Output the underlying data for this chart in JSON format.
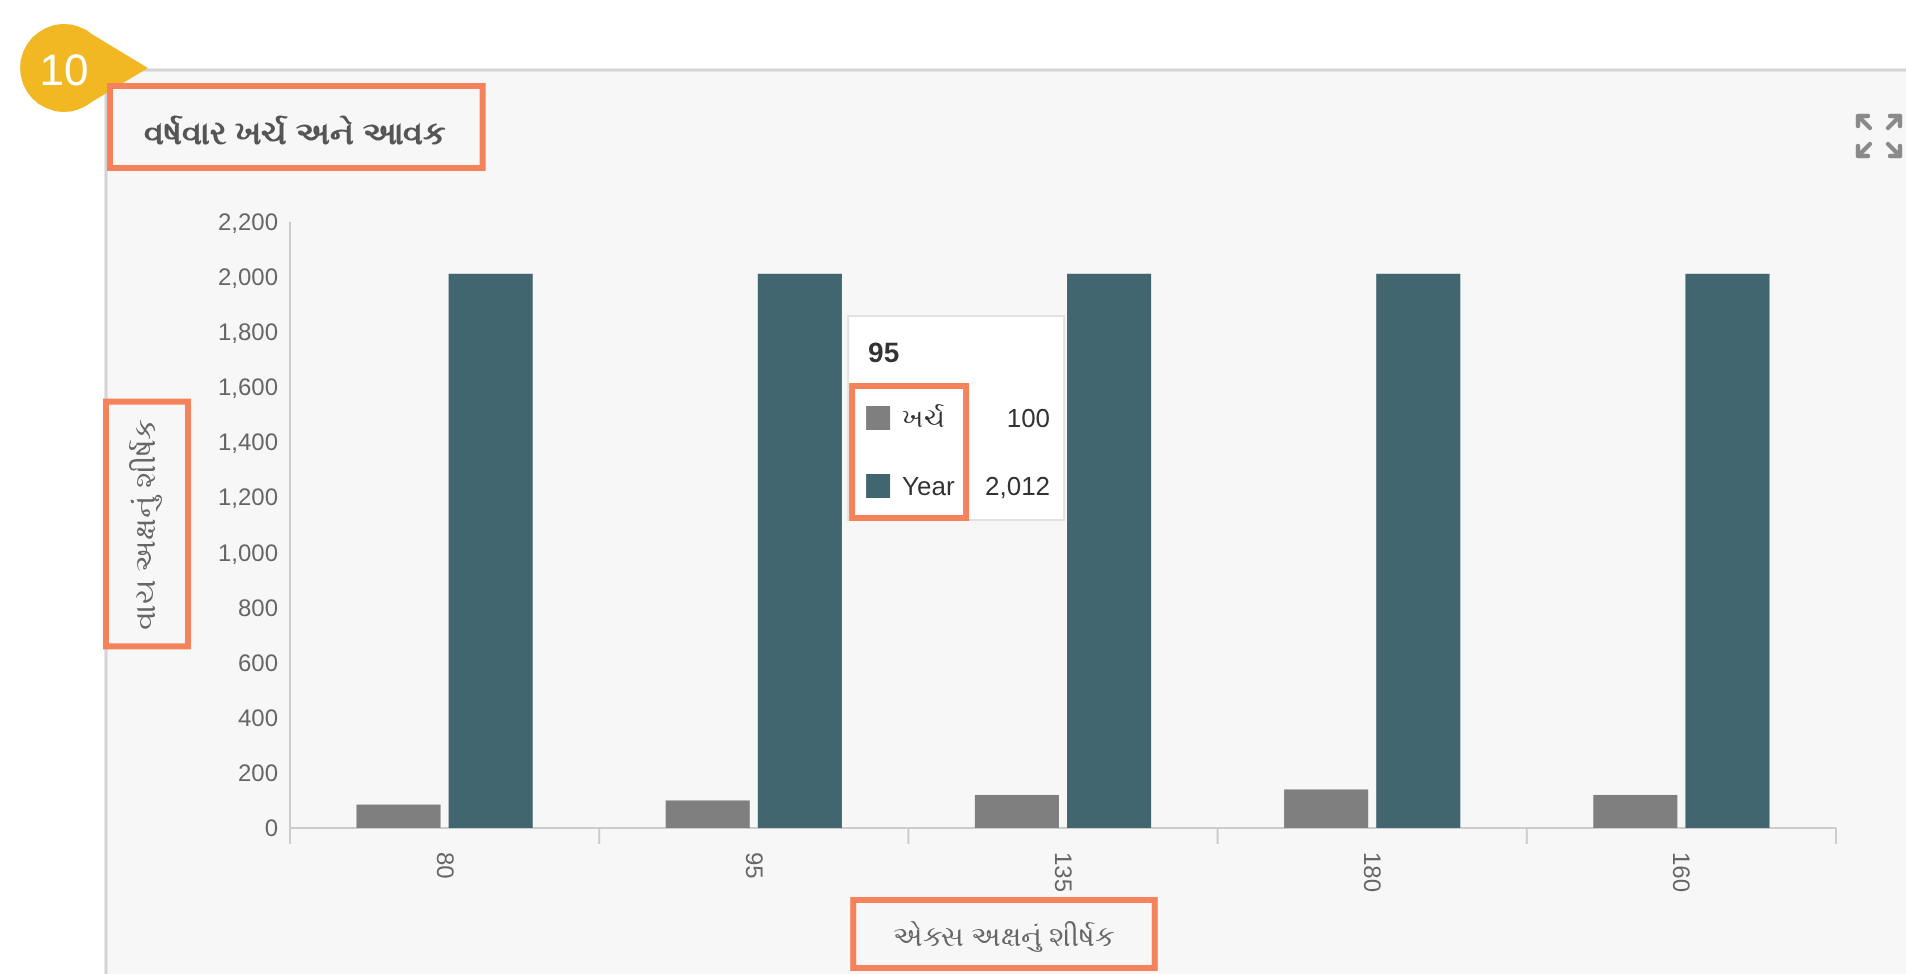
{
  "chart_data": {
    "type": "bar",
    "title": "વર્ષવાર ખર્ચ અને આવક",
    "xlabel": "એક્સ અક્ષનું શીર્ષક",
    "ylabel": "વાય અક્ષનું શીર્ષક",
    "categories": [
      "80",
      "95",
      "135",
      "180",
      "160"
    ],
    "series": [
      {
        "name": "ખર્ચ",
        "color": "#7f7f7f",
        "values": [
          85,
          100,
          120,
          140,
          120
        ]
      },
      {
        "name": "Year",
        "color": "#42666f",
        "values": [
          2012,
          2012,
          2012,
          2012,
          2012
        ]
      }
    ],
    "ylim": [
      0,
      2200
    ],
    "yticks": [
      0,
      200,
      400,
      600,
      800,
      {
        "value": 1000,
        "label": "1,000"
      },
      {
        "value": 1200,
        "label": "1,200"
      },
      {
        "value": 1400,
        "label": "1,400"
      },
      {
        "value": 1600,
        "label": "1,600"
      },
      {
        "value": 1800,
        "label": "1,800"
      },
      {
        "value": 2000,
        "label": "2,000"
      },
      {
        "value": 2200,
        "label": "2,200"
      }
    ],
    "grid": false,
    "legend": "top",
    "legend_title": "95",
    "annotations": [
      "10",
      "100",
      "2,012"
    ]
  }
}
